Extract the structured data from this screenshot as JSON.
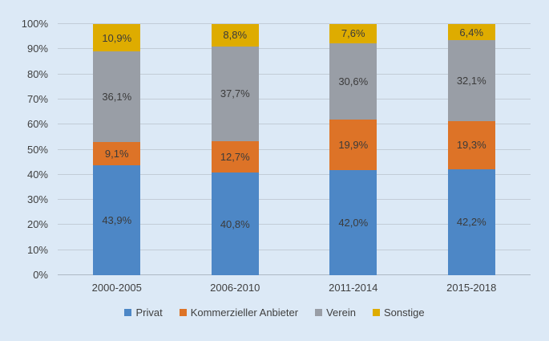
{
  "chart_data": {
    "type": "bar",
    "stacked": true,
    "percent_stacked": true,
    "title": "",
    "xlabel": "",
    "ylabel": "",
    "categories": [
      "2000-2005",
      "2006-2010",
      "2011-2014",
      "2015-2018"
    ],
    "series": [
      {
        "name": "Privat",
        "color": "#4d87c6",
        "values": [
          43.9,
          40.8,
          42.0,
          42.2
        ],
        "labels": [
          "43,9%",
          "40,8%",
          "42,0%",
          "42,2%"
        ]
      },
      {
        "name": "Kommerzieller Anbieter",
        "color": "#dd7327",
        "values": [
          9.1,
          12.7,
          19.9,
          19.3
        ],
        "labels": [
          "9,1%",
          "12,7%",
          "19,9%",
          "19,3%"
        ]
      },
      {
        "name": "Verein",
        "color": "#999ea6",
        "values": [
          36.1,
          37.7,
          30.6,
          32.1
        ],
        "labels": [
          "36,1%",
          "37,7%",
          "30,6%",
          "32,1%"
        ]
      },
      {
        "name": "Sonstige",
        "color": "#deac00",
        "values": [
          10.9,
          8.8,
          7.6,
          6.4
        ],
        "labels": [
          "10,9%",
          "8,8%",
          "7,6%",
          "6,4%"
        ]
      }
    ],
    "y_axis": {
      "min": 0,
      "max": 100,
      "tick_step": 10,
      "tick_labels": [
        "0%",
        "10%",
        "20%",
        "30%",
        "40%",
        "50%",
        "60%",
        "70%",
        "80%",
        "90%",
        "100%"
      ]
    },
    "grid": true,
    "legend_position": "bottom",
    "legend_entries": [
      "Privat",
      "Kommerzieller Anbieter",
      "Verein",
      "Sonstige"
    ]
  },
  "colors": {
    "background": "#dce9f6",
    "gridline": "#c2ccd7",
    "axis_line": "#aeb9c5",
    "text": "#3f3f3f"
  }
}
